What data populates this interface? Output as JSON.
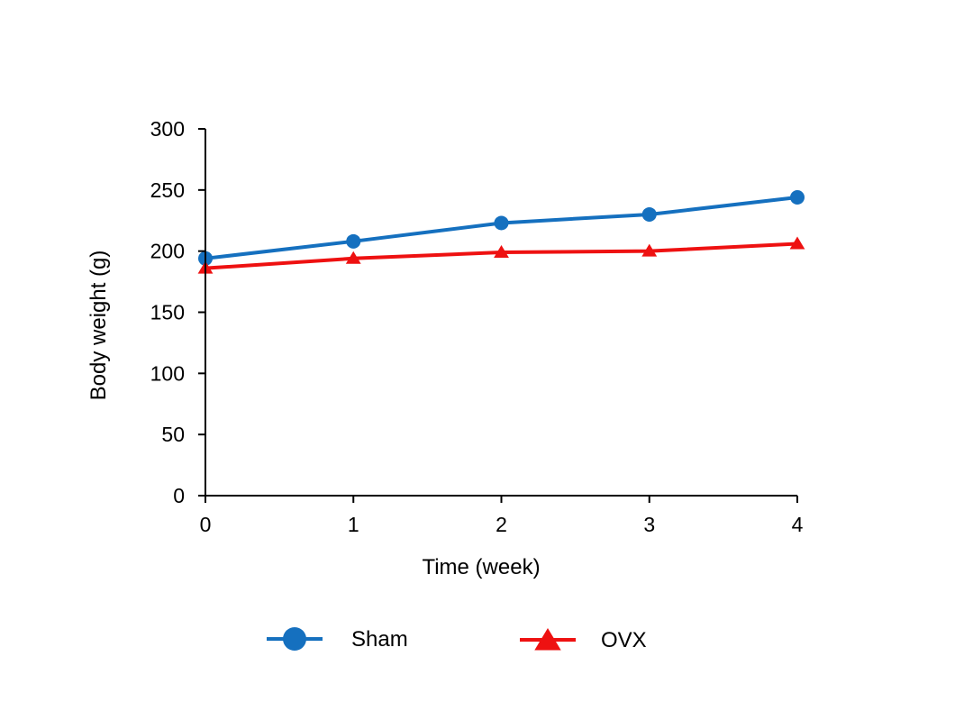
{
  "chart_data": {
    "type": "line",
    "title": "",
    "xlabel": "Time (week)",
    "ylabel": "Body weight (g)",
    "x": [
      0,
      1,
      2,
      3,
      4
    ],
    "x_tick_labels": [
      "0",
      "1",
      "2",
      "3",
      "4"
    ],
    "xlim": [
      0,
      4
    ],
    "ylim": [
      0,
      300
    ],
    "y_ticks": [
      0,
      50,
      100,
      150,
      200,
      250,
      300
    ],
    "y_tick_labels": [
      "0",
      "50",
      "100",
      "150",
      "200",
      "250",
      "300"
    ],
    "grid": false,
    "legend_position": "bottom",
    "series": [
      {
        "name": "Sham",
        "color": "#1570BF",
        "marker": "circle",
        "values": [
          194,
          208,
          223,
          230,
          244
        ]
      },
      {
        "name": "OVX",
        "color": "#EE1111",
        "marker": "triangle",
        "values": [
          186,
          194,
          199,
          200,
          206
        ]
      }
    ]
  }
}
